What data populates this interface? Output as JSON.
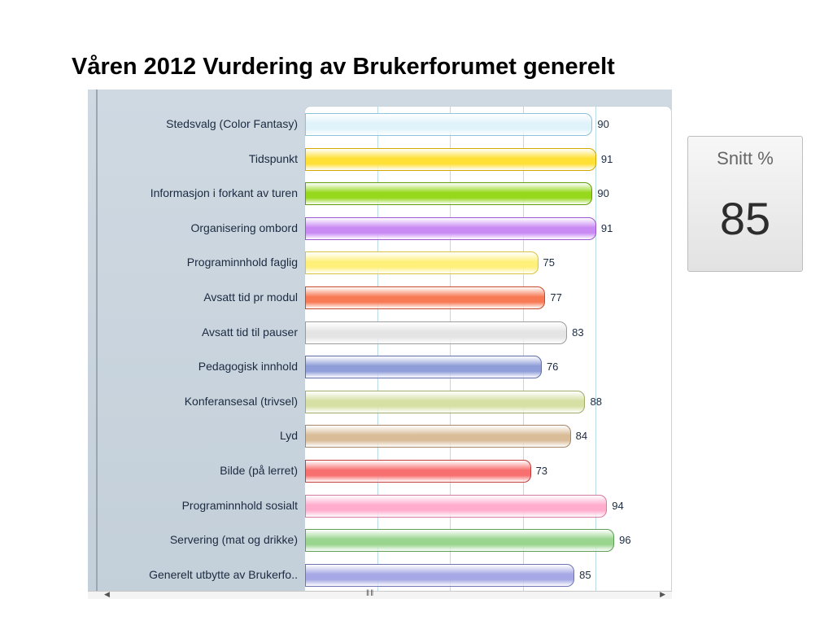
{
  "page": {
    "title": "Våren 2012 Vurdering av Brukerforumet generelt"
  },
  "summary": {
    "label": "Snitt %",
    "value": "85"
  },
  "chart_data": {
    "type": "bar",
    "orientation": "horizontal",
    "title": "Våren 2012 Vurdering av Brukerforumet generelt",
    "xlabel": "",
    "ylabel": "",
    "xlim": [
      0,
      100
    ],
    "grid": true,
    "categories": [
      "Stedsvalg (Color Fantasy)",
      "Tidspunkt",
      "Informasjon i forkant av turen",
      "Organisering ombord",
      "Programinnhold faglig",
      "Avsatt tid pr modul",
      "Avsatt tid til pauser",
      "Pedagogisk innhold",
      "Konferansesal (trivsel)",
      "Lyd",
      "Bilde (på lerret)",
      "Programinnhold sosialt",
      "Servering (mat og drikke)",
      "Generelt utbytte av Brukerfo.."
    ],
    "values": [
      90,
      91,
      90,
      91,
      75,
      77,
      83,
      76,
      88,
      84,
      73,
      94,
      96,
      85
    ],
    "colors": [
      "#dff3fb",
      "#ffe034",
      "#96d81c",
      "#c98af4",
      "#fff07a",
      "#f77a55",
      "#e4e4e4",
      "#8f9dd8",
      "#d6e0a4",
      "#d9bc98",
      "#f86f6f",
      "#ffaccd",
      "#9ad590",
      "#a5a8e4"
    ],
    "borders": [
      "#8bc4dc",
      "#d0a800",
      "#5e9e08",
      "#9c56cf",
      "#d9c23c",
      "#c54b2b",
      "#9c9c9c",
      "#5f6ea8",
      "#a0ab6a",
      "#a7876a",
      "#c23e3e",
      "#d57aa0",
      "#5e9e55",
      "#6f73b4"
    ]
  }
}
